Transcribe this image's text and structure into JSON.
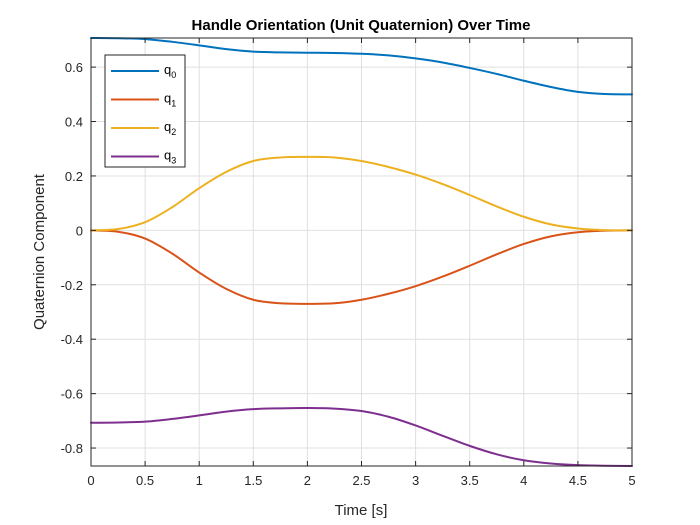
{
  "chart_data": {
    "type": "line",
    "title": "Handle Orientation (Unit Quaternion) Over Time",
    "xlabel": "Time [s]",
    "ylabel": "Quaternion Component",
    "xlim": [
      0,
      5
    ],
    "ylim": [
      -0.866,
      0.707
    ],
    "xticks": [
      0,
      0.5,
      1,
      1.5,
      2,
      2.5,
      3,
      3.5,
      4,
      4.5,
      5
    ],
    "xtick_labels": [
      "0",
      "0.5",
      "1",
      "1.5",
      "2",
      "2.5",
      "3",
      "3.5",
      "4",
      "4.5",
      "5"
    ],
    "yticks": [
      -0.8,
      -0.6,
      -0.4,
      -0.2,
      0,
      0.2,
      0.4,
      0.6
    ],
    "ytick_labels": [
      "-0.8",
      "-0.6",
      "-0.4",
      "-0.2",
      "0",
      "0.2",
      "0.4",
      "0.6"
    ],
    "grid": true,
    "legend_position": "top-left",
    "x": [
      0,
      0.25,
      0.5,
      0.75,
      1,
      1.25,
      1.5,
      1.75,
      2,
      2.25,
      2.5,
      2.75,
      3,
      3.25,
      3.5,
      3.75,
      4,
      4.25,
      4.5,
      4.75,
      5
    ],
    "series": [
      {
        "name": "q",
        "subscript": "0",
        "color": "#0072BD",
        "values": [
          0.707,
          0.706,
          0.703,
          0.693,
          0.68,
          0.666,
          0.657,
          0.654,
          0.653,
          0.652,
          0.649,
          0.643,
          0.632,
          0.617,
          0.597,
          0.575,
          0.55,
          0.527,
          0.509,
          0.501,
          0.5
        ]
      },
      {
        "name": "q",
        "subscript": "1",
        "color": "#D95319",
        "values": [
          0,
          -0.005,
          -0.03,
          -0.085,
          -0.155,
          -0.215,
          -0.255,
          -0.268,
          -0.27,
          -0.268,
          -0.255,
          -0.233,
          -0.205,
          -0.17,
          -0.13,
          -0.088,
          -0.05,
          -0.022,
          -0.007,
          -0.001,
          0
        ]
      },
      {
        "name": "q",
        "subscript": "2",
        "color": "#EDB120",
        "values": [
          0,
          0.005,
          0.03,
          0.085,
          0.155,
          0.215,
          0.255,
          0.268,
          0.27,
          0.268,
          0.255,
          0.233,
          0.205,
          0.17,
          0.13,
          0.088,
          0.05,
          0.022,
          0.007,
          0.001,
          0
        ]
      },
      {
        "name": "q",
        "subscript": "3",
        "color": "#7E2F8E",
        "values": [
          -0.707,
          -0.706,
          -0.703,
          -0.693,
          -0.68,
          -0.666,
          -0.657,
          -0.654,
          -0.653,
          -0.655,
          -0.664,
          -0.685,
          -0.717,
          -0.755,
          -0.792,
          -0.823,
          -0.845,
          -0.857,
          -0.863,
          -0.865,
          -0.866
        ]
      }
    ]
  }
}
